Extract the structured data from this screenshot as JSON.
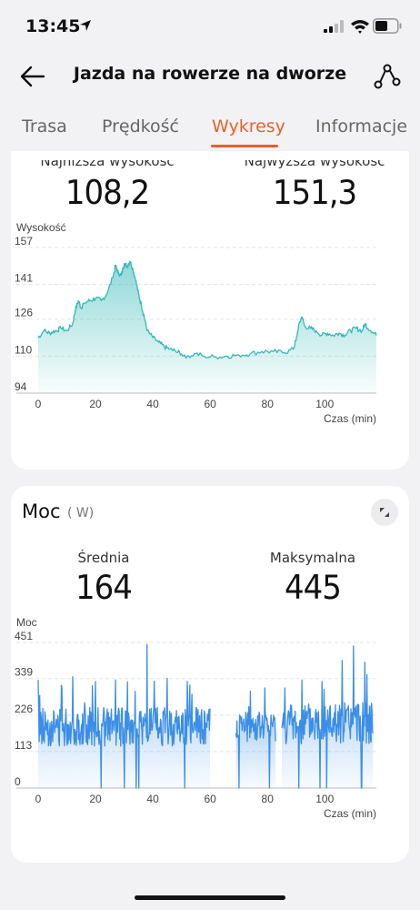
{
  "status_bar": {
    "time": "13:45"
  },
  "header": {
    "title": "Jazda na rowerze na dworze"
  },
  "tabs": [
    {
      "label": "Trasa"
    },
    {
      "label": "Prędkość"
    },
    {
      "label": "Wykresy"
    },
    {
      "label": "Informacje"
    }
  ],
  "active_tab": "Wykresy",
  "colors": {
    "accent": "#e9602c",
    "elevation_line": "#35b9b7",
    "power_line": "#3b8ee8"
  },
  "elevation": {
    "min_label": "Najniższa wysokość",
    "min_value": "108,2",
    "max_label": "Najwyższa wysokość",
    "max_value": "151,3"
  },
  "power": {
    "title": "Moc",
    "unit": "( W)",
    "avg_label": "Średnia",
    "avg_value": "164",
    "max_label": "Maksymalna",
    "max_value": "445"
  },
  "chart_data": [
    {
      "type": "area",
      "ylabel": "Wysokość",
      "xlabel": "Czas (min)",
      "yticks": [
        "157",
        "141",
        "126",
        "110",
        "94"
      ],
      "ytick_values": [
        157,
        141,
        126,
        110,
        94
      ],
      "xticks": [
        "0",
        "20",
        "40",
        "60",
        "80",
        "100"
      ],
      "xtick_values": [
        0,
        20,
        40,
        60,
        80,
        100
      ],
      "xlim": [
        0,
        118
      ],
      "ylim": [
        94,
        157
      ],
      "series": [
        {
          "x": [
            0,
            2,
            4,
            6,
            8,
            10,
            12,
            13,
            14,
            15,
            16,
            18,
            20,
            22,
            24,
            26,
            27,
            28,
            29,
            30,
            31,
            32,
            33,
            34,
            35,
            36,
            37,
            38,
            40,
            42,
            44,
            46,
            48,
            50,
            52,
            55,
            58,
            62,
            66,
            70,
            74,
            78,
            82,
            86,
            89,
            90,
            91,
            92,
            93,
            95,
            97,
            99,
            101,
            103,
            105,
            107,
            109,
            111,
            113,
            114,
            116,
            118
          ],
          "y": [
            118,
            121,
            120,
            121,
            122,
            121,
            124,
            130,
            134,
            131,
            133,
            134,
            135,
            134,
            137,
            144,
            149,
            146,
            145,
            150,
            149,
            151,
            148,
            143,
            137,
            132,
            127,
            121,
            118,
            116,
            114,
            113,
            112,
            111,
            110,
            111,
            110,
            109.5,
            110,
            110.5,
            111,
            112,
            112,
            111.5,
            113,
            117,
            124,
            127,
            123,
            122,
            121,
            119,
            120,
            119,
            120,
            119,
            121,
            122,
            121,
            124,
            121,
            119
          ]
        }
      ]
    },
    {
      "type": "area",
      "ylabel": "Moc",
      "xlabel": "Czas (min)",
      "yticks": [
        "451",
        "339",
        "226",
        "113",
        "0"
      ],
      "ytick_values": [
        451,
        339,
        226,
        113,
        0
      ],
      "xticks": [
        "0",
        "20",
        "40",
        "60",
        "80",
        "100"
      ],
      "xtick_values": [
        0,
        20,
        40,
        60,
        80,
        100
      ],
      "xlim": [
        0,
        118
      ],
      "ylim": [
        0,
        451
      ],
      "series": [
        {
          "segments": [
            {
              "x_start": 0,
              "x_end": 60,
              "mean": 190,
              "spread": 60,
              "x": [
                0,
                12,
                20,
                27,
                38,
                45,
                52
              ],
              "y": [
                335,
                345,
                330,
                335,
                445,
                340,
                330
              ]
            },
            {
              "x_start": 69,
              "x_end": 83,
              "mean": 190,
              "spread": 45,
              "x": [
                74,
                79
              ],
              "y": [
                300,
                310
              ]
            },
            {
              "x_start": 85,
              "x_end": 117,
              "mean": 200,
              "spread": 65,
              "x": [
                86,
                92,
                99,
                106,
                110,
                114
              ],
              "y": [
                310,
                335,
                330,
                395,
                440,
                390
              ]
            }
          ]
        }
      ]
    }
  ]
}
